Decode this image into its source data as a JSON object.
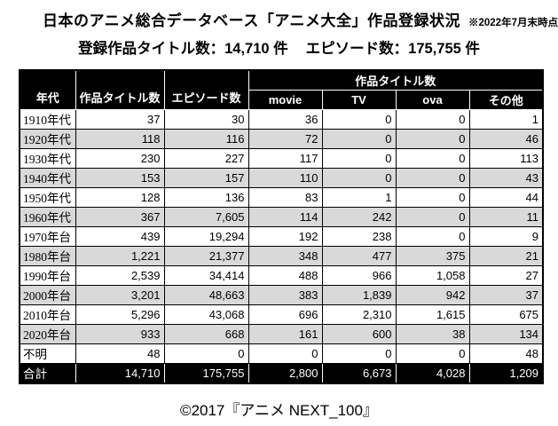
{
  "page": {
    "title": "日本のアニメ総合データベース「アニメ大全」作品登録状況",
    "title_note": "※2022年7月末時点",
    "subtitle_titles": "登録作品タイトル数：14,710 件",
    "subtitle_episodes": "エピソード数：175,755 件",
    "footer_credit": "©2017『アニメ NEXT_100』"
  },
  "table": {
    "header": {
      "era": "年代",
      "title_count": "作品タイトル数",
      "episode_count": "エピソード数",
      "group_title_count": "作品タイトル数",
      "sub": [
        "movie",
        "TV",
        "ova",
        "その他"
      ]
    },
    "rows": [
      {
        "label": "1910年代",
        "values": [
          "37",
          "30",
          "36",
          "0",
          "0",
          "1"
        ]
      },
      {
        "label": "1920年代",
        "values": [
          "118",
          "116",
          "72",
          "0",
          "0",
          "46"
        ]
      },
      {
        "label": "1930年代",
        "values": [
          "230",
          "227",
          "117",
          "0",
          "0",
          "113"
        ]
      },
      {
        "label": "1940年代",
        "values": [
          "153",
          "157",
          "110",
          "0",
          "0",
          "43"
        ]
      },
      {
        "label": "1950年代",
        "values": [
          "128",
          "136",
          "83",
          "1",
          "0",
          "44"
        ]
      },
      {
        "label": "1960年代",
        "values": [
          "367",
          "7,605",
          "114",
          "242",
          "0",
          "11"
        ]
      },
      {
        "label": "1970年台",
        "values": [
          "439",
          "19,294",
          "192",
          "238",
          "0",
          "9"
        ]
      },
      {
        "label": "1980年台",
        "values": [
          "1,221",
          "21,377",
          "348",
          "477",
          "375",
          "21"
        ]
      },
      {
        "label": "1990年台",
        "values": [
          "2,539",
          "34,414",
          "488",
          "966",
          "1,058",
          "27"
        ]
      },
      {
        "label": "2000年台",
        "values": [
          "3,201",
          "48,663",
          "383",
          "1,839",
          "942",
          "37"
        ]
      },
      {
        "label": "2010年台",
        "values": [
          "5,296",
          "43,068",
          "696",
          "2,310",
          "1,615",
          "675"
        ]
      },
      {
        "label": "2020年台",
        "values": [
          "933",
          "668",
          "161",
          "600",
          "38",
          "134"
        ]
      },
      {
        "label": "不明",
        "values": [
          "48",
          "0",
          "0",
          "0",
          "0",
          "48"
        ]
      }
    ],
    "total_row": {
      "label": "合計",
      "values": [
        "14,710",
        "175,755",
        "2,800",
        "6,673",
        "4,028",
        "1,209"
      ]
    },
    "colors": {
      "header_bg": "#000000",
      "header_text": "#ffffff",
      "stripe": "#d9d9d9",
      "total_bg": "#000000",
      "total_text": "#ffffff"
    }
  }
}
